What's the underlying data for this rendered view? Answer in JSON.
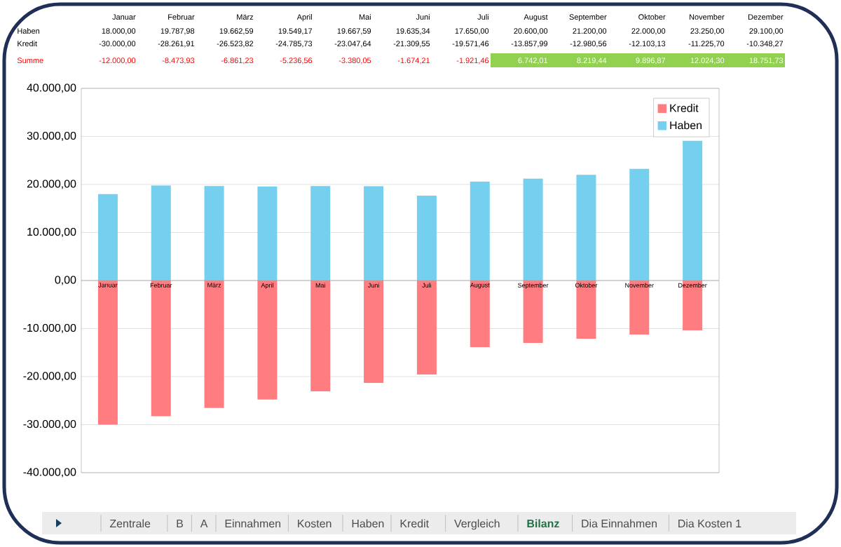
{
  "chart_data": {
    "type": "bar",
    "stacked": true,
    "categories": [
      "Januar",
      "Februar",
      "März",
      "April",
      "Mai",
      "Juni",
      "Juli",
      "August",
      "September",
      "Oktober",
      "November",
      "Dezember"
    ],
    "series": [
      {
        "name": "Kredit",
        "color": "#ff7c80",
        "values": [
          -30000,
          -28261.91,
          -26523.82,
          -24785.73,
          -23047.64,
          -21309.55,
          -19571.46,
          -13857.99,
          -12980.56,
          -12103.13,
          -11225.7,
          -10348.27
        ]
      },
      {
        "name": "Haben",
        "color": "#75d0ef",
        "values": [
          18000,
          19787.98,
          19662.59,
          19549.17,
          19667.59,
          19635.34,
          17650,
          20600,
          21200,
          22000,
          23250,
          29100
        ]
      }
    ],
    "ylim": [
      -40000,
      40000
    ],
    "yticks": [
      {
        "value": -40000,
        "label": "-40.000,00"
      },
      {
        "value": -30000,
        "label": "-30.000,00"
      },
      {
        "value": -20000,
        "label": "-20.000,00"
      },
      {
        "value": -10000,
        "label": "-10.000,00"
      },
      {
        "value": 0,
        "label": "0,00"
      },
      {
        "value": 10000,
        "label": "10.000,00"
      },
      {
        "value": 20000,
        "label": "20.000,00"
      },
      {
        "value": 30000,
        "label": "30.000,00"
      },
      {
        "value": 40000,
        "label": "40.000,00"
      }
    ],
    "grid": "y",
    "legend": "top right",
    "annotations": [
      "Haben",
      "18.000,00",
      "19.787,98",
      "19.662,59",
      "19.549,17",
      "19.667,59",
      "19.635,34",
      "17.650,00",
      "20.600,00",
      "21.200,00",
      "22.000,00",
      "23.250,00",
      "29.100,00",
      "Kredit",
      "-30.000,00",
      "-28.261,91",
      "-26.523,82",
      "-24.785,73",
      "-23.047,64",
      "-21.309,55",
      "-19.571,46",
      "-13.857,99",
      "-12.980,56",
      "-12.103,13",
      "-11.225,70",
      "-10.348,27",
      "Summe",
      "-12.000,00",
      "-8.473,93",
      "-6.861,23",
      "-5.236,56",
      "-3.380,05",
      "-1.674,21",
      "-1.921,46",
      "6.742,01",
      "8.219,44",
      "9.896,87",
      "12.024,30",
      "18.751,73",
      "Zentrale",
      "B",
      "A",
      "Einnahmen",
      "Kosten",
      "Haben",
      "Kredit",
      "Vergleich",
      "Bilanz",
      "Dia Einnahmen",
      "Dia Kosten 1"
    ]
  }
}
